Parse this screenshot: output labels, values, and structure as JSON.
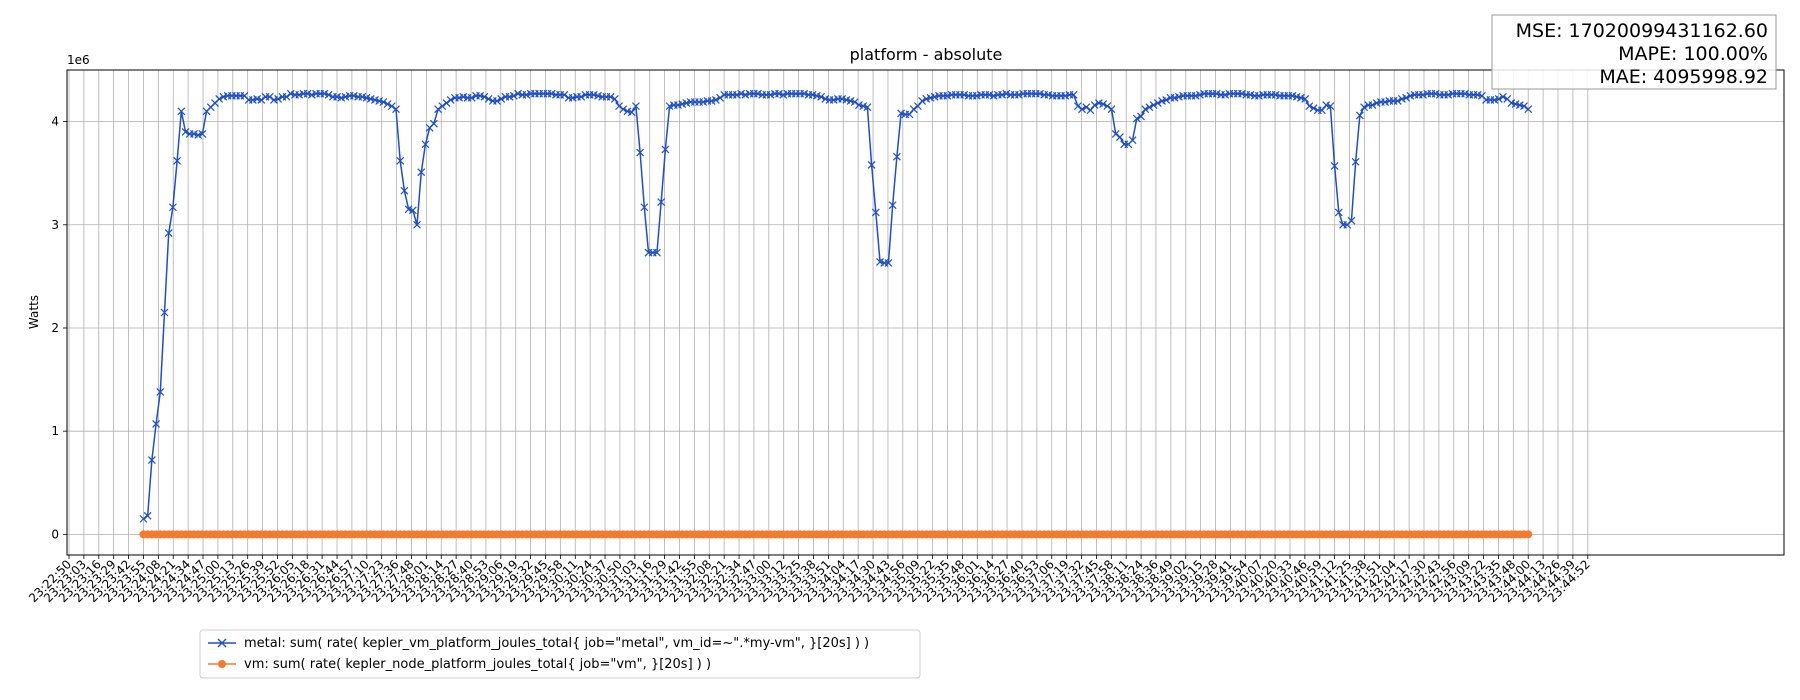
{
  "chart_data": {
    "type": "line",
    "title": "platform - absolute",
    "xlabel": "",
    "ylabel": "Watts",
    "y_multiplier": "1e6",
    "y_scale": 1000000,
    "ylim": [
      -0.2,
      4.5
    ],
    "y_ticks": [
      0,
      1,
      2,
      3,
      4
    ],
    "grid": true,
    "legend_placement": "bottom-left, outside plot",
    "x_tick_labels": [
      "23:22:50",
      "23:23:03",
      "23:23:16",
      "23:23:29",
      "23:23:42",
      "23:23:55",
      "23:24:08",
      "23:24:21",
      "23:24:34",
      "23:24:47",
      "23:25:00",
      "23:25:13",
      "23:25:26",
      "23:25:39",
      "23:25:52",
      "23:26:05",
      "23:26:18",
      "23:26:31",
      "23:26:44",
      "23:26:57",
      "23:27:10",
      "23:27:23",
      "23:27:36",
      "23:27:48",
      "23:28:01",
      "23:28:14",
      "23:28:27",
      "23:28:40",
      "23:28:53",
      "23:29:06",
      "23:29:19",
      "23:29:32",
      "23:29:45",
      "23:29:58",
      "23:30:11",
      "23:30:24",
      "23:30:37",
      "23:30:50",
      "23:31:03",
      "23:31:16",
      "23:31:29",
      "23:31:42",
      "23:31:55",
      "23:32:08",
      "23:32:21",
      "23:32:34",
      "23:32:47",
      "23:33:00",
      "23:33:12",
      "23:33:25",
      "23:33:38",
      "23:33:51",
      "23:34:04",
      "23:34:17",
      "23:34:30",
      "23:34:43",
      "23:34:56",
      "23:35:09",
      "23:35:22",
      "23:35:35",
      "23:35:48",
      "23:36:01",
      "23:36:14",
      "23:36:27",
      "23:36:40",
      "23:36:53",
      "23:37:06",
      "23:37:19",
      "23:37:32",
      "23:37:45",
      "23:37:58",
      "23:38:11",
      "23:38:24",
      "23:38:36",
      "23:38:49",
      "23:39:02",
      "23:39:15",
      "23:39:28",
      "23:39:41",
      "23:39:54",
      "23:40:07",
      "23:40:20",
      "23:40:33",
      "23:40:46",
      "23:40:59",
      "23:41:12",
      "23:41:25",
      "23:41:38",
      "23:41:51",
      "23:42:04",
      "23:42:17",
      "23:42:30",
      "23:42:43",
      "23:42:56",
      "23:43:09",
      "23:43:22",
      "23:43:35",
      "23:43:48",
      "23:44:00",
      "23:44:13",
      "23:44:26",
      "23:44:39",
      "23:44:52"
    ],
    "series": [
      {
        "name": "metal: sum( rate( kepler_vm_platform_joules_total{ job=\"metal\", vm_id=~\".*my-vm\", }[20s] ) )",
        "color": "#1f4fc2",
        "marker": "x",
        "x_start_index": 5,
        "x_end_index": 98,
        "values": [
          0.15,
          0.18,
          0.72,
          1.07,
          1.38,
          2.15,
          2.92,
          3.17,
          3.62,
          4.1,
          3.9,
          3.88,
          3.88,
          3.87,
          3.88,
          4.1,
          4.14,
          4.18,
          4.22,
          4.24,
          4.25,
          4.25,
          4.25,
          4.25,
          4.25,
          4.21,
          4.21,
          4.22,
          4.21,
          4.24,
          4.24,
          4.21,
          4.22,
          4.24,
          4.24,
          4.27,
          4.26,
          4.26,
          4.27,
          4.27,
          4.26,
          4.27,
          4.27,
          4.27,
          4.26,
          4.24,
          4.24,
          4.23,
          4.24,
          4.25,
          4.25,
          4.24,
          4.24,
          4.23,
          4.22,
          4.21,
          4.2,
          4.19,
          4.17,
          4.15,
          4.12,
          3.62,
          3.33,
          3.15,
          3.14,
          3.0,
          3.51,
          3.78,
          3.94,
          3.98,
          4.12,
          4.15,
          4.18,
          4.21,
          4.23,
          4.23,
          4.24,
          4.23,
          4.23,
          4.25,
          4.25,
          4.24,
          4.22,
          4.2,
          4.2,
          4.22,
          4.24,
          4.24,
          4.25,
          4.27,
          4.26,
          4.26,
          4.27,
          4.27,
          4.27,
          4.27,
          4.27,
          4.27,
          4.26,
          4.26,
          4.26,
          4.23,
          4.23,
          4.24,
          4.24,
          4.26,
          4.26,
          4.26,
          4.25,
          4.24,
          4.24,
          4.24,
          4.22,
          4.15,
          4.12,
          4.1,
          4.09,
          4.15,
          3.7,
          3.17,
          2.73,
          2.73,
          2.73,
          3.22,
          3.73,
          4.15,
          4.16,
          4.16,
          4.17,
          4.18,
          4.19,
          4.19,
          4.19,
          4.19,
          4.2,
          4.2,
          4.21,
          4.23,
          4.26,
          4.26,
          4.26,
          4.26,
          4.27,
          4.26,
          4.27,
          4.27,
          4.27,
          4.26,
          4.26,
          4.26,
          4.27,
          4.27,
          4.26,
          4.27,
          4.27,
          4.27,
          4.27,
          4.27,
          4.26,
          4.26,
          4.25,
          4.24,
          4.22,
          4.21,
          4.21,
          4.22,
          4.22,
          4.21,
          4.2,
          4.19,
          4.16,
          4.15,
          4.14,
          3.58,
          3.12,
          2.64,
          2.63,
          2.63,
          3.19,
          3.66,
          4.08,
          4.07,
          4.07,
          4.12,
          4.15,
          4.2,
          4.22,
          4.23,
          4.24,
          4.25,
          4.25,
          4.25,
          4.26,
          4.26,
          4.26,
          4.26,
          4.25,
          4.25,
          4.25,
          4.26,
          4.26,
          4.26,
          4.25,
          4.26,
          4.26,
          4.27,
          4.26,
          4.26,
          4.26,
          4.27,
          4.27,
          4.27,
          4.27,
          4.27,
          4.26,
          4.26,
          4.25,
          4.25,
          4.25,
          4.25,
          4.26,
          4.26,
          4.15,
          4.12,
          4.14,
          4.11,
          4.16,
          4.18,
          4.17,
          4.15,
          4.12,
          3.88,
          3.85,
          3.78,
          3.78,
          3.82,
          4.03,
          4.05,
          4.12,
          4.14,
          4.16,
          4.18,
          4.2,
          4.21,
          4.23,
          4.23,
          4.24,
          4.25,
          4.25,
          4.25,
          4.25,
          4.26,
          4.27,
          4.27,
          4.27,
          4.27,
          4.26,
          4.26,
          4.27,
          4.27,
          4.27,
          4.27,
          4.26,
          4.26,
          4.25,
          4.25,
          4.26,
          4.26,
          4.26,
          4.26,
          4.25,
          4.25,
          4.25,
          4.25,
          4.24,
          4.23,
          4.22,
          4.15,
          4.13,
          4.11,
          4.11,
          4.16,
          4.15,
          3.57,
          3.12,
          3.0,
          3.0,
          3.04,
          3.61,
          4.06,
          4.14,
          4.16,
          4.16,
          4.18,
          4.19,
          4.19,
          4.2,
          4.2,
          4.2,
          4.22,
          4.23,
          4.25,
          4.26,
          4.26,
          4.26,
          4.27,
          4.27,
          4.27,
          4.26,
          4.26,
          4.26,
          4.27,
          4.27,
          4.27,
          4.27,
          4.26,
          4.26,
          4.26,
          4.25,
          4.21,
          4.21,
          4.21,
          4.22,
          4.24,
          4.22,
          4.18,
          4.17,
          4.16,
          4.15,
          4.12
        ]
      },
      {
        "name": "vm: sum( rate( kepler_node_platform_joules_total{ job=\"vm\", }[20s] ) )",
        "color": "#f47a2e",
        "marker": "o",
        "x_start_index": 5,
        "x_end_index": 98,
        "constant_value": 0.0
      }
    ]
  },
  "stats_box": {
    "mse": "MSE: 17020099431162.60",
    "mape": "MAPE: 100.00%",
    "mae": "MAE: 4095998.92"
  }
}
